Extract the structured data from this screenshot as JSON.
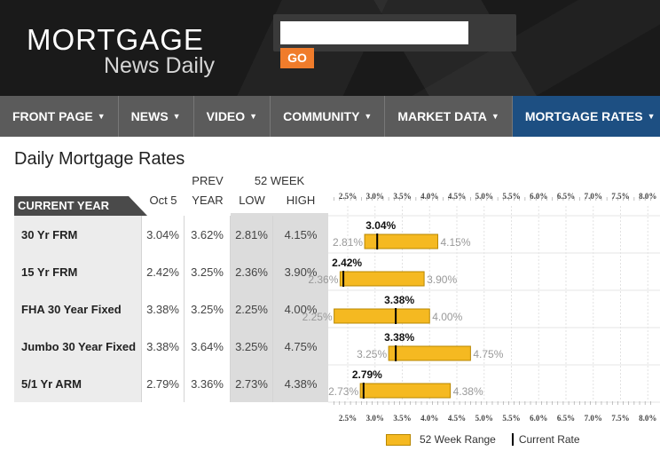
{
  "header": {
    "logo_main": "MORTGAGE",
    "logo_sub": "News Daily",
    "search_placeholder": "",
    "go_label": "GO"
  },
  "nav": {
    "items": [
      {
        "label": "FRONT PAGE",
        "active": false
      },
      {
        "label": "NEWS",
        "active": false
      },
      {
        "label": "VIDEO",
        "active": false
      },
      {
        "label": "COMMUNITY",
        "active": false
      },
      {
        "label": "MARKET DATA",
        "active": false
      },
      {
        "label": "MORTGAGE RATES",
        "active": true
      }
    ]
  },
  "page_title": "Daily Mortgage Rates",
  "table": {
    "tab_label": "CURRENT YEAR",
    "col_oct": "Oct 5",
    "col_prev_top": "PREV",
    "col_prev_bottom": "YEAR",
    "col_52week": "52 WEEK",
    "col_low": "LOW",
    "col_high": "HIGH",
    "rows": [
      {
        "name": "30 Yr FRM",
        "oct": "3.04%",
        "prev": "3.62%",
        "low": "2.81%",
        "high": "4.15%"
      },
      {
        "name": "15 Yr FRM",
        "oct": "2.42%",
        "prev": "3.25%",
        "low": "2.36%",
        "high": "3.90%"
      },
      {
        "name": "FHA 30 Year Fixed",
        "oct": "3.38%",
        "prev": "3.25%",
        "low": "2.25%",
        "high": "4.00%"
      },
      {
        "name": "Jumbo 30 Year Fixed",
        "oct": "3.38%",
        "prev": "3.64%",
        "low": "3.25%",
        "high": "4.75%"
      },
      {
        "name": "5/1 Yr ARM",
        "oct": "2.79%",
        "prev": "3.36%",
        "low": "2.73%",
        "high": "4.38%"
      }
    ]
  },
  "chart_data": {
    "type": "bar",
    "axis_ticks": [
      "2.5%",
      "3.0%",
      "3.5%",
      "4.0%",
      "4.5%",
      "5.0%",
      "5.5%",
      "6.0%",
      "6.5%",
      "7.0%",
      "7.5%",
      "8.0%"
    ],
    "xlim": [
      2.25,
      8.0
    ],
    "series": [
      {
        "category": "30 Yr FRM",
        "low": 2.81,
        "high": 4.15,
        "current": 3.04
      },
      {
        "category": "15 Yr FRM",
        "low": 2.36,
        "high": 3.9,
        "current": 2.42
      },
      {
        "category": "FHA 30 Year Fixed",
        "low": 2.25,
        "high": 4.0,
        "current": 3.38
      },
      {
        "category": "Jumbo 30 Year Fixed",
        "low": 3.25,
        "high": 4.75,
        "current": 3.38
      },
      {
        "category": "5/1 Yr ARM",
        "low": 2.73,
        "high": 4.38,
        "current": 2.79
      }
    ],
    "bar_color": "#f5b921",
    "legend_range": "52 Week Range",
    "legend_current": "Current Rate",
    "legend_position": "bottom"
  }
}
